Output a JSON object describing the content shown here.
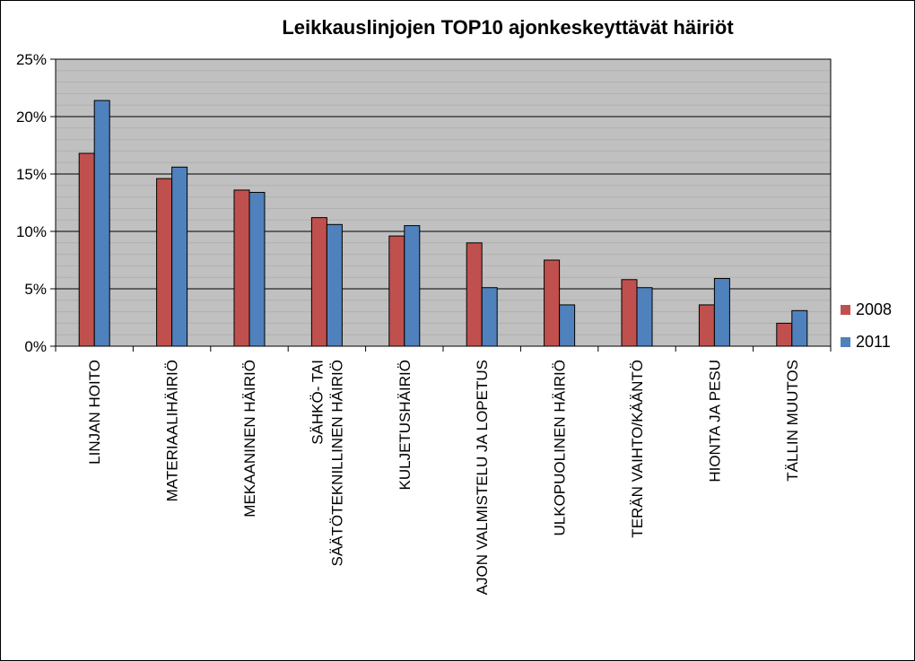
{
  "chart_data": {
    "type": "bar",
    "title": "Leikkauslinjojen TOP10 ajonkeskeyttävät häiriöt",
    "xlabel": "",
    "ylabel": "",
    "ylim": [
      0,
      25
    ],
    "y_ticks": [
      "0%",
      "5%",
      "10%",
      "15%",
      "20%",
      "25%"
    ],
    "grid": true,
    "legend_position": "right",
    "categories": [
      "LINJAN HOITO",
      "MATERIAALIHÄIRIÖ",
      "MEKAANINEN HÄIRIÖ",
      "SÄHKÖ- TAI SÄÄTÖTEKNILLINEN HÄIRIÖ",
      "KULJETUSHÄIRIÖ",
      "AJON VALMISTELU JA LOPETUS",
      "ULKOPUOLINEN HÄIRIÖ",
      "TERÄN VAIHTO/KÄÄNTÖ",
      "HIONTA JA PESU",
      "TÄLLIN MUUTOS"
    ],
    "category_lines": [
      [
        "LINJAN HOITO"
      ],
      [
        "MATERIAALIHÄIRIÖ"
      ],
      [
        "MEKAANINEN HÄIRIÖ"
      ],
      [
        "SÄHKÖ- TAI",
        "SÄÄTÖTEKNILLINEN HÄIRIÖ"
      ],
      [
        "KULJETUSHÄIRIÖ"
      ],
      [
        "AJON VALMISTELU JA LOPETUS"
      ],
      [
        "ULKOPUOLINEN HÄIRIÖ"
      ],
      [
        "TERÄN VAIHTO/KÄÄNTÖ"
      ],
      [
        "HIONTA JA PESU"
      ],
      [
        "TÄLLIN MUUTOS"
      ]
    ],
    "series": [
      {
        "name": "2008",
        "color": "#c0504d",
        "values": [
          16.8,
          14.6,
          13.6,
          11.2,
          9.6,
          9.0,
          7.5,
          5.8,
          3.6,
          2.0
        ]
      },
      {
        "name": "2011",
        "color": "#4f81bd",
        "values": [
          21.4,
          15.6,
          13.4,
          10.6,
          10.5,
          5.1,
          3.6,
          5.1,
          5.9,
          3.1
        ]
      }
    ],
    "plot_background": "#c0c0c0"
  }
}
